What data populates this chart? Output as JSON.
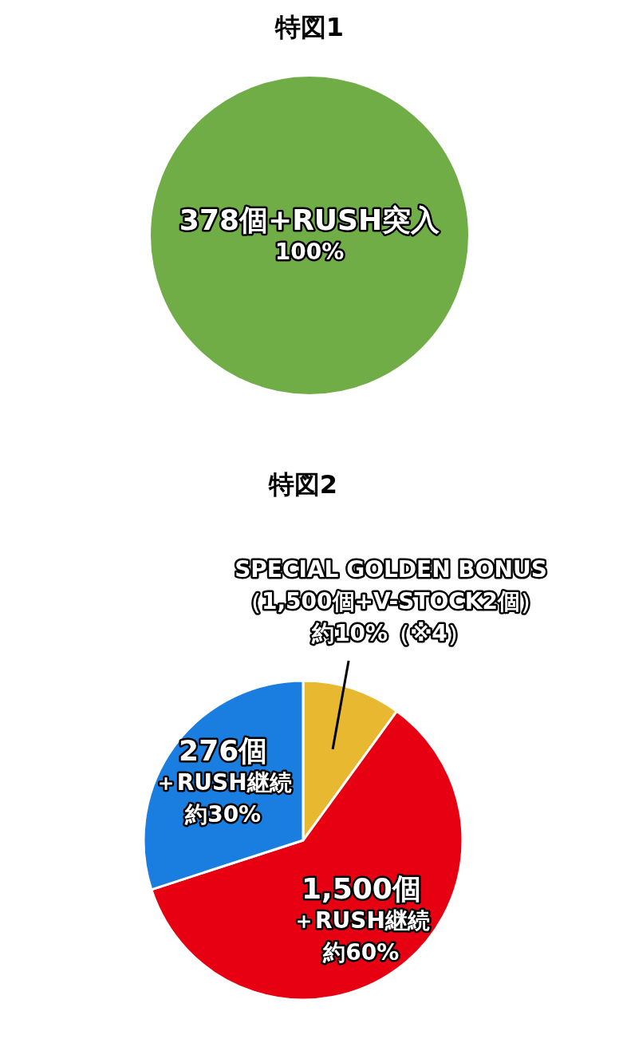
{
  "chart_data": [
    {
      "type": "pie",
      "title": "特図1",
      "categories": [
        "378個+RUSH突入"
      ],
      "values": [
        100
      ],
      "colors": [
        "#70ad47"
      ],
      "value_labels": [
        "100%"
      ]
    },
    {
      "type": "pie",
      "title": "特図2",
      "categories": [
        "SPECIAL GOLDEN BONUS（1,500個+V-STOCK2個）",
        "1,500個＋RUSH継続",
        "276個＋RUSH継続"
      ],
      "values": [
        10,
        60,
        30
      ],
      "colors": [
        "#e8b830",
        "#e60012",
        "#1a7ee0"
      ],
      "value_labels": [
        "約10%（※4）",
        "約60%",
        "約30%"
      ]
    }
  ]
}
